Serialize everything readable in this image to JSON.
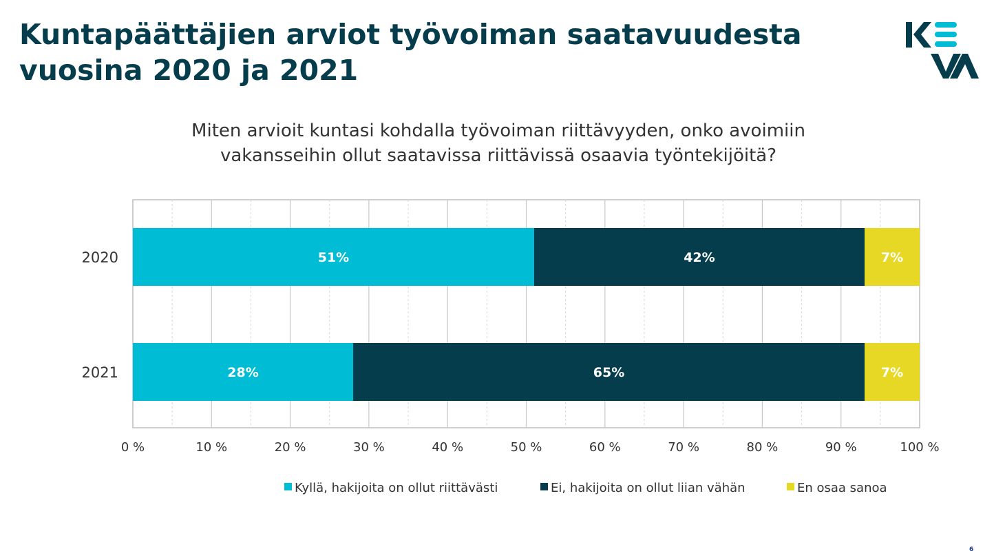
{
  "slide": {
    "title_lines": [
      "Kuntapäättäjien arviot työvoiman saatavuudesta",
      "vuosina 2020 ja 2021"
    ],
    "question_lines": [
      "Miten arvioit kuntasi kohdalla työvoiman riittävyyden, onko avoimiin",
      "vakansseihin ollut saatavissa riittävissä osaavia työntekijöitä?"
    ],
    "page_number": "6",
    "logo_alt": "KEVA"
  },
  "colors": {
    "title": "#063d4d",
    "cyan": "#00bcd4",
    "dark": "#063d4d",
    "yellow": "#e8d826",
    "grid": "#cfcfcf"
  },
  "chart_data": {
    "type": "bar",
    "orientation": "horizontal",
    "stacked": true,
    "categories": [
      "2020",
      "2021"
    ],
    "series": [
      {
        "name": "Kyllä, hakijoita on ollut riittävästi",
        "values": [
          51,
          28
        ],
        "labels": [
          "51%",
          "28%"
        ],
        "color": "#00bcd4"
      },
      {
        "name": "Ei, hakijoita on ollut liian vähän",
        "values": [
          42,
          65
        ],
        "labels": [
          "42%",
          "65%"
        ],
        "color": "#063d4d"
      },
      {
        "name": "En osaa sanoa",
        "values": [
          7,
          7
        ],
        "labels": [
          "7%",
          "7%"
        ],
        "color": "#e8d826"
      }
    ],
    "xlim": [
      0,
      100
    ],
    "xticks": [
      0,
      10,
      20,
      30,
      40,
      50,
      60,
      70,
      80,
      90,
      100
    ],
    "xtick_labels": [
      "0 %",
      "10 %",
      "20 %",
      "30 %",
      "40 %",
      "50 %",
      "60 %",
      "70 %",
      "80 %",
      "90 %",
      "100 %"
    ],
    "grid": "vertical",
    "legend": "bottom"
  }
}
